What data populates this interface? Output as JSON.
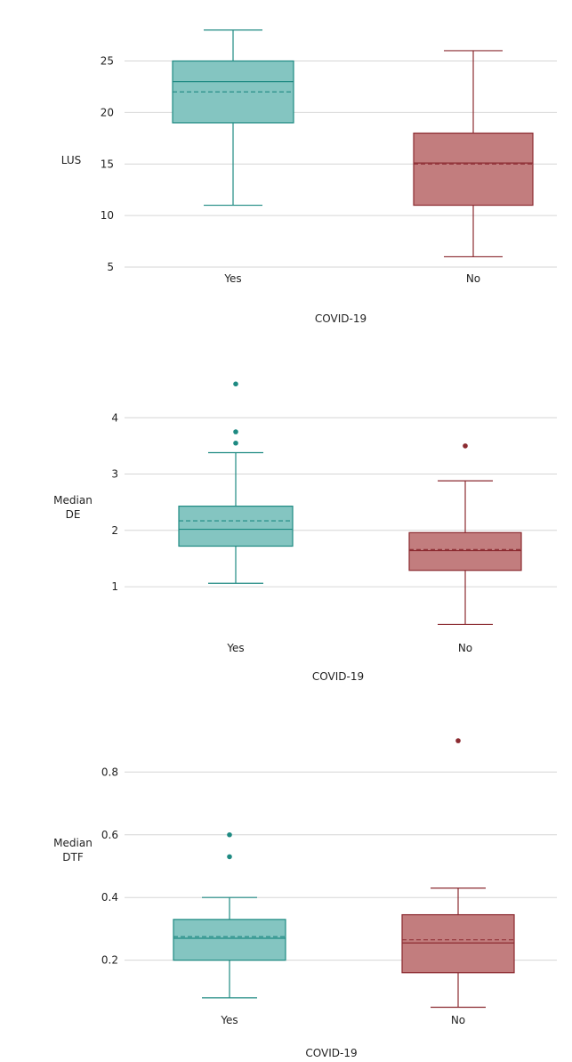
{
  "chart_data": [
    {
      "type": "box",
      "xlabel": "COVID-19",
      "ylabel": [
        "LUS"
      ],
      "yticks": [
        5,
        10,
        15,
        20,
        25
      ],
      "ylim": [
        5,
        28.5
      ],
      "grid": "horizontal",
      "groups": [
        {
          "category": "Yes",
          "color": "#84C5C1",
          "stroke": "#1E8A82",
          "min": 11,
          "q1": 19,
          "median": 23,
          "mean": 22,
          "q3": 25,
          "max": 28,
          "outliers": []
        },
        {
          "category": "No",
          "color": "#C27D7E",
          "stroke": "#8B2A30",
          "min": 6,
          "q1": 11,
          "median": 15.1,
          "mean": 15,
          "q3": 18,
          "max": 26,
          "outliers": []
        }
      ]
    },
    {
      "type": "box",
      "xlabel": "COVID-19",
      "ylabel": [
        "Median",
        "DE"
      ],
      "yticks": [
        1,
        2,
        3,
        4
      ],
      "ylim": [
        0.1,
        4.7
      ],
      "grid": "horizontal",
      "groups": [
        {
          "category": "Yes",
          "color": "#84C5C1",
          "stroke": "#1E8A82",
          "min": 1.06,
          "q1": 1.72,
          "median": 2.02,
          "mean": 2.17,
          "q3": 2.43,
          "max": 3.38,
          "outliers": [
            3.55,
            3.75,
            4.6
          ]
        },
        {
          "category": "No",
          "color": "#C27D7E",
          "stroke": "#8B2A30",
          "min": 0.33,
          "q1": 1.29,
          "median": 1.64,
          "mean": 1.66,
          "q3": 1.96,
          "max": 2.88,
          "outliers": [
            3.5
          ]
        }
      ]
    },
    {
      "type": "box",
      "xlabel": "COVID-19",
      "ylabel": [
        "Median",
        "DTF"
      ],
      "yticks": [
        0.2,
        0.4,
        0.6,
        0.8
      ],
      "ylim": [
        0.04,
        0.94
      ],
      "grid": "horizontal",
      "groups": [
        {
          "category": "Yes",
          "color": "#84C5C1",
          "stroke": "#1E8A82",
          "min": 0.08,
          "q1": 0.2,
          "median": 0.27,
          "mean": 0.275,
          "q3": 0.33,
          "max": 0.4,
          "outliers": [
            0.53,
            0.6
          ]
        },
        {
          "category": "No",
          "color": "#C27D7E",
          "stroke": "#8B2A30",
          "min": 0.05,
          "q1": 0.16,
          "median": 0.255,
          "mean": 0.265,
          "q3": 0.345,
          "max": 0.43,
          "outliers": [
            0.9
          ]
        }
      ]
    }
  ]
}
